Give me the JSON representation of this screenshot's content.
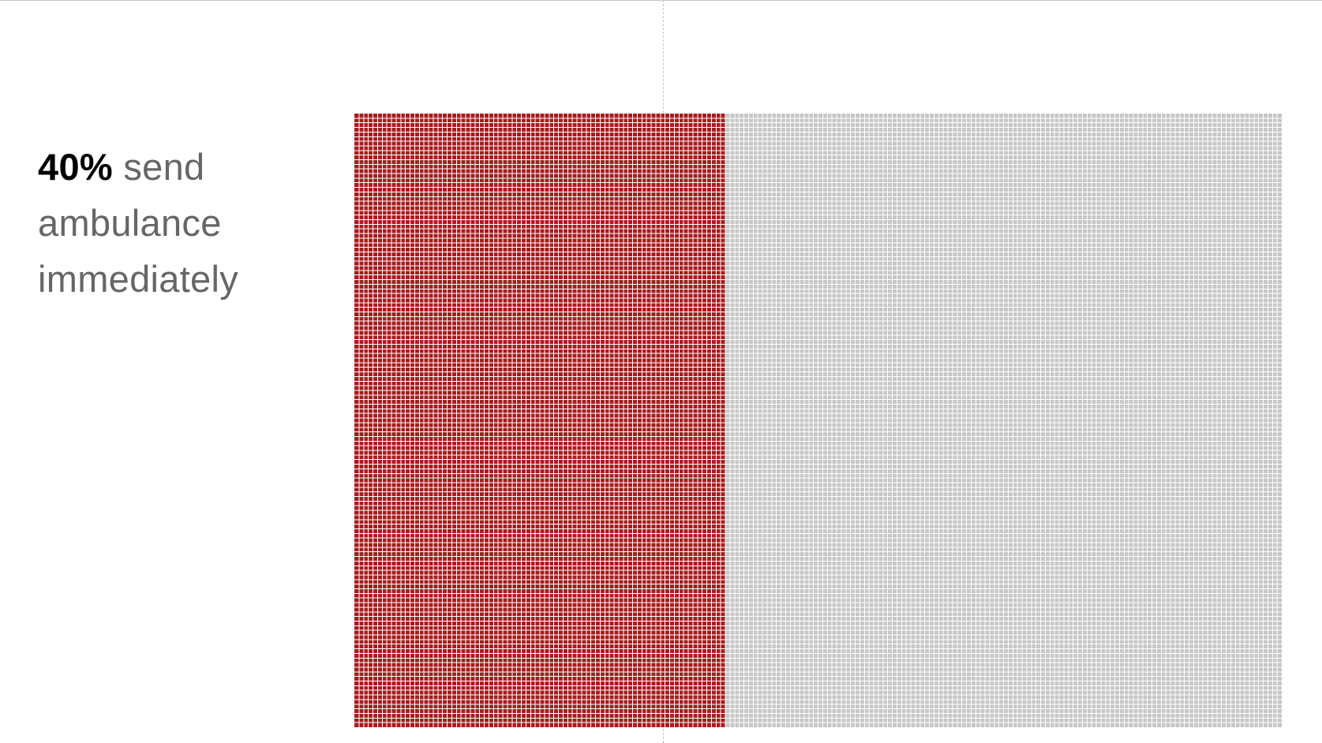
{
  "caption": {
    "percent": "40%",
    "rest": " send ambulance immediately"
  },
  "colors": {
    "highlight": "#a71c1f",
    "remainder": "#c7c7c7",
    "gridline": "#ffffff"
  },
  "chart_data": {
    "type": "waffle",
    "title": "",
    "series": [
      {
        "name": "send ambulance immediately",
        "percent": 40,
        "color": "#a71c1f"
      },
      {
        "name": "",
        "percent": 60,
        "color": "#c7c7c7"
      }
    ],
    "grid": true
  }
}
